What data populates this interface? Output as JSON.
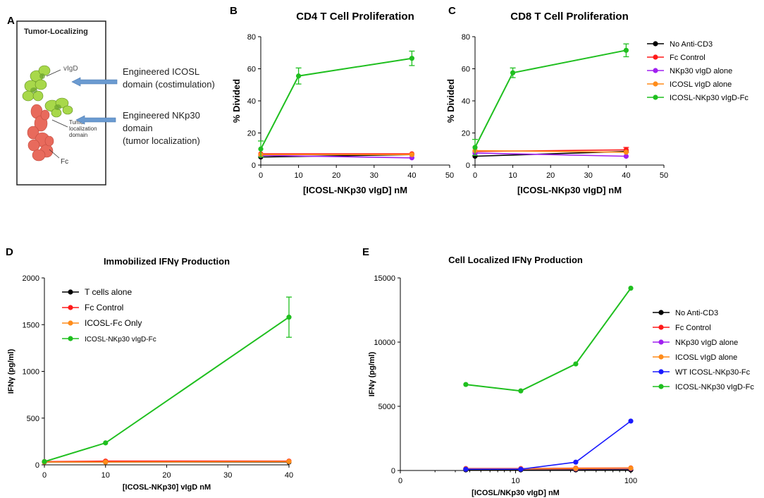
{
  "colors": {
    "black": "#000000",
    "red": "#ff1a1a",
    "purple": "#a020f0",
    "orange": "#ff8c1a",
    "green": "#1fbf1f",
    "blue": "#1a1aff",
    "arrow": "#6b9bd1"
  },
  "panel_a": {
    "letter": "A",
    "box_title": "Tumor-Localizing",
    "labels": {
      "vigd": "vIgD",
      "tumor_loc": [
        "Tumor",
        "localization",
        "domain"
      ],
      "fc": "Fc"
    },
    "annotations": {
      "icosl": [
        "Engineered ICOSL",
        "domain (costimulation)"
      ],
      "nkp30": [
        "Engineered NKp30",
        "domain",
        "(tumor localization)"
      ]
    },
    "icons": [
      "protein-structure-icon",
      "arrow-left-icon"
    ]
  },
  "chart_data": [
    {
      "id": "B",
      "letter": "B",
      "type": "line",
      "title": "CD4 T Cell Proliferation",
      "xlabel": "[ICOSL-NKp30 vIgD] nM",
      "ylabel": "% Divided",
      "xlim": [
        0,
        50
      ],
      "ylim": [
        0,
        80
      ],
      "xticks": [
        0,
        10,
        20,
        30,
        40,
        50
      ],
      "yticks": [
        0,
        20,
        40,
        60,
        80
      ],
      "xscale": "linear",
      "legend_position": "none",
      "series": [
        {
          "name": "No Anti-CD3",
          "color": "black",
          "x": [
            0,
            40
          ],
          "y": [
            5,
            6.5
          ]
        },
        {
          "name": "Fc Control",
          "color": "red",
          "x": [
            0,
            40
          ],
          "y": [
            7,
            7
          ]
        },
        {
          "name": "NKp30 vIgD alone",
          "color": "purple",
          "x": [
            0,
            40
          ],
          "y": [
            6,
            4.5
          ]
        },
        {
          "name": "ICOSL vIgD alone",
          "color": "orange",
          "x": [
            0,
            40
          ],
          "y": [
            6.5,
            6.5
          ]
        },
        {
          "name": "ICOSL-NKp30 vIgD-Fc",
          "color": "green",
          "x": [
            0,
            10,
            40
          ],
          "y": [
            10,
            55.5,
            66.5
          ],
          "err": [
            5,
            5,
            4.5
          ]
        }
      ]
    },
    {
      "id": "C",
      "letter": "C",
      "type": "line",
      "title": "CD8 T Cell Proliferation",
      "xlabel": "[ICOSL-NKp30 vIgD] nM",
      "ylabel": "% Divided",
      "xlim": [
        0,
        50
      ],
      "ylim": [
        0,
        80
      ],
      "xticks": [
        0,
        10,
        20,
        30,
        40,
        50
      ],
      "yticks": [
        0,
        20,
        40,
        60,
        80
      ],
      "xscale": "linear",
      "legend_position": "right",
      "legend": [
        "No Anti-CD3",
        "Fc Control",
        "NKp30 vIgD alone",
        "ICOSL vIgD alone",
        "ICOSL-NKp30 vIgD-Fc"
      ],
      "series": [
        {
          "name": "No Anti-CD3",
          "color": "black",
          "x": [
            0,
            40
          ],
          "y": [
            5.5,
            8.5
          ]
        },
        {
          "name": "Fc Control",
          "color": "red",
          "x": [
            0,
            40
          ],
          "y": [
            8.5,
            9.5
          ],
          "err": [
            0,
            1.5
          ]
        },
        {
          "name": "NKp30 vIgD alone",
          "color": "purple",
          "x": [
            0,
            40
          ],
          "y": [
            7.5,
            5.5
          ]
        },
        {
          "name": "ICOSL vIgD alone",
          "color": "orange",
          "x": [
            0,
            40
          ],
          "y": [
            9,
            8
          ]
        },
        {
          "name": "ICOSL-NKp30 vIgD-Fc",
          "color": "green",
          "x": [
            0,
            10,
            40
          ],
          "y": [
            11,
            57.5,
            71.5
          ],
          "err": [
            5,
            3,
            4
          ]
        }
      ]
    },
    {
      "id": "D",
      "letter": "D",
      "type": "line",
      "title": "Immobilized IFNγ Production",
      "xlabel": "[ICOSL-NKp30] vIgD nM",
      "ylabel": "IFNγ (pg/ml)",
      "xlim": [
        0,
        40
      ],
      "ylim": [
        0,
        2000
      ],
      "xticks": [
        0,
        10,
        20,
        30,
        40
      ],
      "yticks": [
        0,
        500,
        1000,
        1500,
        2000
      ],
      "xscale": "linear",
      "legend_position": "top-left",
      "legend": [
        "T cells alone",
        "Fc Control",
        "ICOSL-Fc Only",
        "ICOSL-NKp30 vIgD-Fc"
      ],
      "series": [
        {
          "name": "T cells alone",
          "color": "black",
          "x": [
            0,
            10,
            40
          ],
          "y": [
            30,
            30,
            30
          ]
        },
        {
          "name": "Fc Control",
          "color": "red",
          "x": [
            0,
            10,
            40
          ],
          "y": [
            35,
            40,
            40
          ]
        },
        {
          "name": "ICOSL-Fc Only",
          "color": "orange",
          "x": [
            0,
            10,
            40
          ],
          "y": [
            30,
            30,
            35
          ]
        },
        {
          "name": "ICOSL-NKp30 vIgD-Fc",
          "color": "green",
          "x": [
            0,
            10,
            40
          ],
          "y": [
            35,
            235,
            1580
          ],
          "err": [
            0,
            0,
            215
          ]
        }
      ]
    },
    {
      "id": "E",
      "letter": "E",
      "type": "line",
      "title": "Cell Localized IFNγ Production",
      "xlabel": "[ICOSL/NKp30 vIgD] nM",
      "ylabel": "IFNγ (pg/ml)",
      "xlim": [
        0,
        100
      ],
      "ylim": [
        0,
        15000
      ],
      "xticks_labels": [
        "0",
        "10",
        "100"
      ],
      "yticks": [
        0,
        5000,
        10000,
        15000
      ],
      "xscale": "log",
      "legend_position": "right",
      "legend": [
        "No Anti-CD3",
        "Fc Control",
        "NKp30 vIgD alone",
        "ICOSL vIgD alone",
        "WT ICOSL-NKp30-Fc",
        "ICOSL-NKp30 vIgD-Fc"
      ],
      "series": [
        {
          "name": "No Anti-CD3",
          "color": "black",
          "x": [
            3.7,
            11.1,
            33.3,
            100
          ],
          "y": [
            50,
            50,
            50,
            50
          ]
        },
        {
          "name": "Fc Control",
          "color": "red",
          "x": [
            3.7,
            11.1,
            33.3,
            100
          ],
          "y": [
            150,
            150,
            180,
            200
          ]
        },
        {
          "name": "NKp30 vIgD alone",
          "color": "purple",
          "x": [
            3.7,
            11.1,
            33.3,
            100
          ],
          "y": [
            100,
            100,
            120,
            150
          ]
        },
        {
          "name": "ICOSL vIgD alone",
          "color": "orange",
          "x": [
            3.7,
            11.1,
            33.3,
            100
          ],
          "y": [
            120,
            120,
            150,
            180
          ]
        },
        {
          "name": "WT ICOSL-NKp30-Fc",
          "color": "blue",
          "x": [
            3.7,
            11.1,
            33.3,
            100
          ],
          "y": [
            100,
            100,
            650,
            3850
          ]
        },
        {
          "name": "ICOSL-NKp30 vIgD-Fc",
          "color": "green",
          "x": [
            3.7,
            11.1,
            33.3,
            100
          ],
          "y": [
            6700,
            6200,
            8300,
            14200
          ]
        }
      ]
    }
  ]
}
